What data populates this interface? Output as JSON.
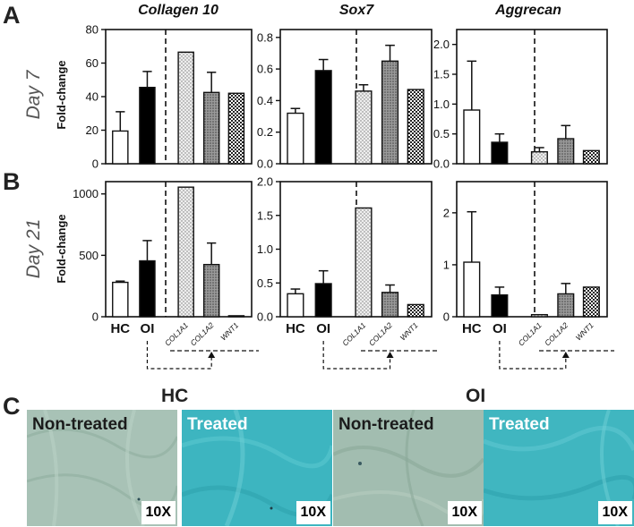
{
  "colors": {
    "nontreated_tissue": "#a9c3b5",
    "treated_tissue": "#3fb7c1"
  },
  "panel_labels": [
    "A",
    "B",
    "C"
  ],
  "row_labels": [
    "Day 7",
    "Day 21"
  ],
  "fold_change_label": "Fold-change",
  "columns": [
    "Collagen 10",
    "Sox7",
    "Aggrecan"
  ],
  "group_labels": [
    "HC",
    "OI"
  ],
  "treatment_labels": [
    "COL1A1",
    "COL1A2",
    "WNT1"
  ],
  "microscopy": {
    "group_labels": [
      "HC",
      "OI"
    ],
    "panels": [
      {
        "group": "HC",
        "label": "Non-treated",
        "magnification": "10X"
      },
      {
        "group": "HC",
        "label": "Treated",
        "magnification": "10X"
      },
      {
        "group": "OI",
        "label": "Non-treated",
        "magnification": "10X"
      },
      {
        "group": "OI",
        "label": "Treated",
        "magnification": "10X"
      }
    ]
  },
  "chart_data": [
    {
      "type": "bar",
      "row": "Day 7",
      "title": "Collagen 10",
      "ylabel": "Fold-change",
      "categories": [
        "HC",
        "OI",
        "COL1A1",
        "COL1A2",
        "WNT1"
      ],
      "values": [
        19.5,
        45.5,
        66.5,
        42.5,
        42.0
      ],
      "errors": [
        11.5,
        9.5,
        0,
        12.0,
        0
      ],
      "ylim": [
        0,
        80
      ],
      "yticks": [
        0,
        20,
        40,
        60,
        80
      ],
      "ytick_labels": [
        "0",
        "20",
        "40",
        "60",
        "80"
      ]
    },
    {
      "type": "bar",
      "row": "Day 7",
      "title": "Sox7",
      "ylabel": "",
      "categories": [
        "HC",
        "OI",
        "COL1A1",
        "COL1A2",
        "WNT1"
      ],
      "values": [
        0.32,
        0.59,
        0.46,
        0.65,
        0.47
      ],
      "errors": [
        0.03,
        0.07,
        0.04,
        0.1,
        0
      ],
      "ylim": [
        0,
        0.85
      ],
      "yticks": [
        0,
        0.2,
        0.4,
        0.6,
        0.8
      ],
      "ytick_labels": [
        "0.0",
        "0.2",
        "0.4",
        "0.6",
        "0.8"
      ]
    },
    {
      "type": "bar",
      "row": "Day 7",
      "title": "Aggrecan",
      "ylabel": "",
      "categories": [
        "HC",
        "OI",
        "COL1A1",
        "COL1A2",
        "WNT1"
      ],
      "values": [
        0.9,
        0.36,
        0.2,
        0.42,
        0.22
      ],
      "errors": [
        0.82,
        0.14,
        0.07,
        0.22,
        0
      ],
      "ylim": [
        0,
        2.25
      ],
      "yticks": [
        0,
        0.5,
        1.0,
        1.5,
        2.0
      ],
      "ytick_labels": [
        "0.0",
        "0.5",
        "1.0",
        "1.5",
        "2.0"
      ]
    },
    {
      "type": "bar",
      "row": "Day 21",
      "title": "Collagen 10",
      "ylabel": "Fold-change",
      "categories": [
        "HC",
        "OI",
        "COL1A1",
        "COL1A2",
        "WNT1"
      ],
      "values": [
        280,
        455,
        1055,
        425,
        8
      ],
      "errors": [
        10,
        165,
        0,
        175,
        0
      ],
      "ylim": [
        0,
        1100
      ],
      "yticks": [
        0,
        500,
        1000
      ],
      "ytick_labels": [
        "0",
        "500",
        "1000"
      ]
    },
    {
      "type": "bar",
      "row": "Day 21",
      "title": "Sox7",
      "ylabel": "",
      "categories": [
        "HC",
        "OI",
        "COL1A1",
        "COL1A2",
        "WNT1"
      ],
      "values": [
        0.34,
        0.49,
        1.61,
        0.36,
        0.18
      ],
      "errors": [
        0.07,
        0.19,
        0,
        0.11,
        0
      ],
      "ylim": [
        0,
        2.0
      ],
      "yticks": [
        0,
        0.5,
        1.0,
        1.5,
        2.0
      ],
      "ytick_labels": [
        "0.0",
        "0.5",
        "1.0",
        "1.5",
        "2.0"
      ]
    },
    {
      "type": "bar",
      "row": "Day 21",
      "title": "Aggrecan",
      "ylabel": "",
      "categories": [
        "HC",
        "OI",
        "COL1A1",
        "COL1A2",
        "WNT1"
      ],
      "values": [
        1.05,
        0.42,
        0.04,
        0.44,
        0.57
      ],
      "errors": [
        0.97,
        0.15,
        0,
        0.2,
        0
      ],
      "ylim": [
        0,
        2.6
      ],
      "yticks": [
        0,
        1,
        2
      ],
      "ytick_labels": [
        "0",
        "1",
        "2"
      ]
    }
  ]
}
